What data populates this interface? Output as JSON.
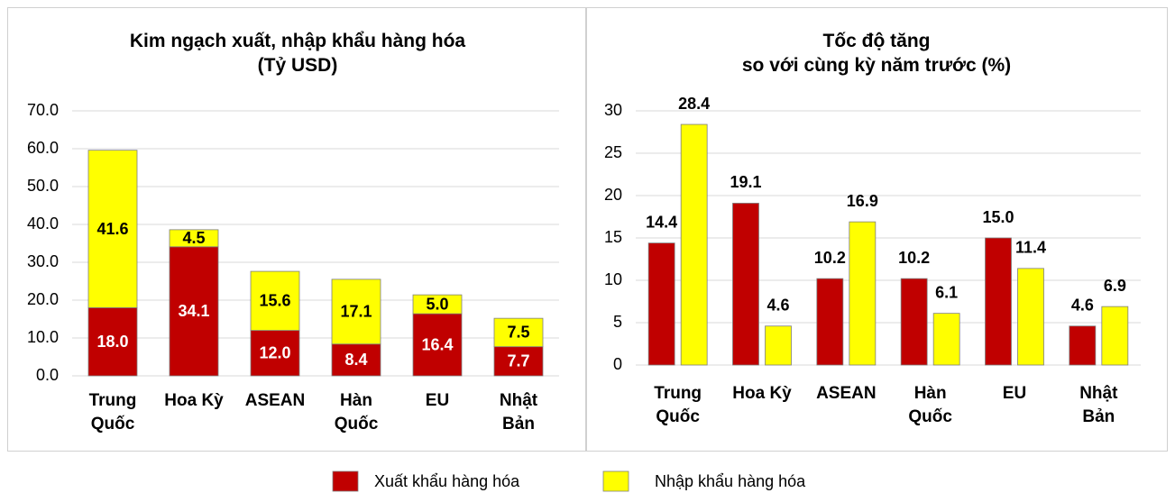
{
  "chart_data": [
    {
      "type": "stacked_bar",
      "title": "Kim ngạch xuất, nhập khẩu hàng hóa\n(Tỷ USD)",
      "categories": [
        "Trung\nQuốc",
        "Hoa Kỳ",
        "ASEAN",
        "Hàn\nQuốc",
        "EU",
        "Nhật\nBản"
      ],
      "series": [
        {
          "name": "Xuất khẩu hàng hóa",
          "color": "#c00000",
          "values": [
            18.0,
            34.1,
            12.0,
            8.4,
            16.4,
            7.7
          ],
          "value_labels": [
            "18.0",
            "34.1",
            "12.0",
            "8.4",
            "16.4",
            "7.7"
          ]
        },
        {
          "name": "Nhập khẩu hàng hóa",
          "color": "#ffff00",
          "values": [
            41.6,
            4.5,
            15.6,
            17.1,
            5.0,
            7.5
          ],
          "value_labels": [
            "41.6",
            "4.5",
            "15.6",
            "17.1",
            "5.0",
            "7.5"
          ]
        }
      ],
      "ylim": [
        0,
        70
      ],
      "yticks": [
        {
          "value": 0,
          "label": "0.0"
        },
        {
          "value": 10,
          "label": "10.0"
        },
        {
          "value": 20,
          "label": "20.0"
        },
        {
          "value": 30,
          "label": "30.0"
        },
        {
          "value": 40,
          "label": "40.0"
        },
        {
          "value": 50,
          "label": "50.0"
        },
        {
          "value": 60,
          "label": "60.0"
        },
        {
          "value": 70,
          "label": "70.0"
        }
      ],
      "grid": true
    },
    {
      "type": "bar",
      "title": "Tốc độ tăng\nso với cùng kỳ năm trước (%)",
      "categories": [
        "Trung\nQuốc",
        "Hoa Kỳ",
        "ASEAN",
        "Hàn\nQuốc",
        "EU",
        "Nhật\nBản"
      ],
      "series": [
        {
          "name": "Xuất khẩu hàng hóa",
          "color": "#c00000",
          "values": [
            14.4,
            19.1,
            10.2,
            10.2,
            15.0,
            4.6
          ],
          "value_labels": [
            "14.4",
            "19.1",
            "10.2",
            "10.2",
            "15.0",
            "4.6"
          ]
        },
        {
          "name": "Nhập khẩu hàng hóa",
          "color": "#ffff00",
          "values": [
            28.4,
            4.6,
            16.9,
            6.1,
            11.4,
            6.9
          ]
        }
      ],
      "ylim": [
        0,
        30
      ],
      "yticks": [
        0,
        5,
        10,
        15,
        20,
        25,
        30
      ],
      "grid": true
    }
  ]
}
